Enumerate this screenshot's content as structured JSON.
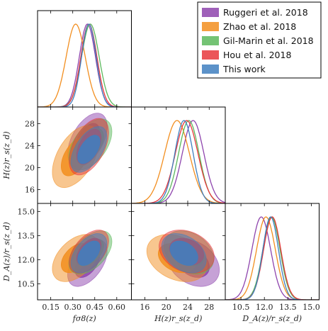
{
  "figure": {
    "xlabels": [
      "fσ8(z)",
      "H(z)r_s(z_d)",
      "D_A(z)/r_s(z_d)"
    ],
    "ylabels": [
      "H(z)r_s(z_d)",
      "D_A(z)/r_s(z_d)"
    ]
  },
  "chart_data": {
    "type": "scatter",
    "subtype": "corner-plot (1D marginals + 2D 68%/95% credible contours)",
    "parameters": [
      {
        "name": "fσ8(z)",
        "label": "fσ8(z)",
        "range": [
          0.06,
          0.7
        ],
        "ticks": [
          0.15,
          0.3,
          0.45,
          0.6
        ]
      },
      {
        "name": "H(z)r_s(z_d)",
        "label": "H(z)r_s(z_d)",
        "range": [
          13.5,
          31
        ],
        "ticks": [
          16,
          20,
          24,
          28
        ]
      },
      {
        "name": "D_A(z)/r_s(z_d)",
        "label": "D_A(z)/r_s(z_d)",
        "range": [
          9.5,
          15.5
        ],
        "ticks": [
          10.5,
          12.0,
          13.5,
          15.0
        ]
      }
    ],
    "legend": {
      "position": "top-right",
      "entries": [
        "Ruggeri et al. 2018",
        "Zhao et al. 2018",
        "Gil-Marin et al. 2018",
        "Hou et al. 2018",
        "This work"
      ]
    },
    "series": [
      {
        "name": "Ruggeri et al. 2018",
        "color": "#8E44AD",
        "mean": [
          0.4,
          25.0,
          11.8
        ],
        "sigma": [
          0.055,
          2.0,
          0.6
        ],
        "rho": [
          0.5,
          0.5,
          -0.3
        ]
      },
      {
        "name": "Zhao et al. 2018",
        "color": "#F28E1F",
        "mean": [
          0.32,
          22.0,
          12.1
        ],
        "sigma": [
          0.065,
          2.3,
          0.6
        ],
        "rho": [
          0.5,
          0.45,
          -0.3
        ]
      },
      {
        "name": "Gil-Marin et al. 2018",
        "color": "#5CB85C",
        "mean": [
          0.42,
          24.2,
          12.45
        ],
        "sigma": [
          0.06,
          1.9,
          0.55
        ],
        "rho": [
          0.5,
          0.5,
          -0.3
        ]
      },
      {
        "name": "Hou et al. 2018",
        "color": "#E8373C",
        "mean": [
          0.41,
          23.8,
          12.5
        ],
        "sigma": [
          0.055,
          2.1,
          0.55
        ],
        "rho": [
          0.5,
          0.5,
          -0.25
        ]
      },
      {
        "name": "This work",
        "color": "#3F7FBF",
        "mean": [
          0.41,
          23.3,
          12.4
        ],
        "sigma": [
          0.05,
          1.7,
          0.5
        ],
        "rho": [
          0.55,
          0.5,
          -0.35
        ]
      }
    ],
    "grid": false
  }
}
